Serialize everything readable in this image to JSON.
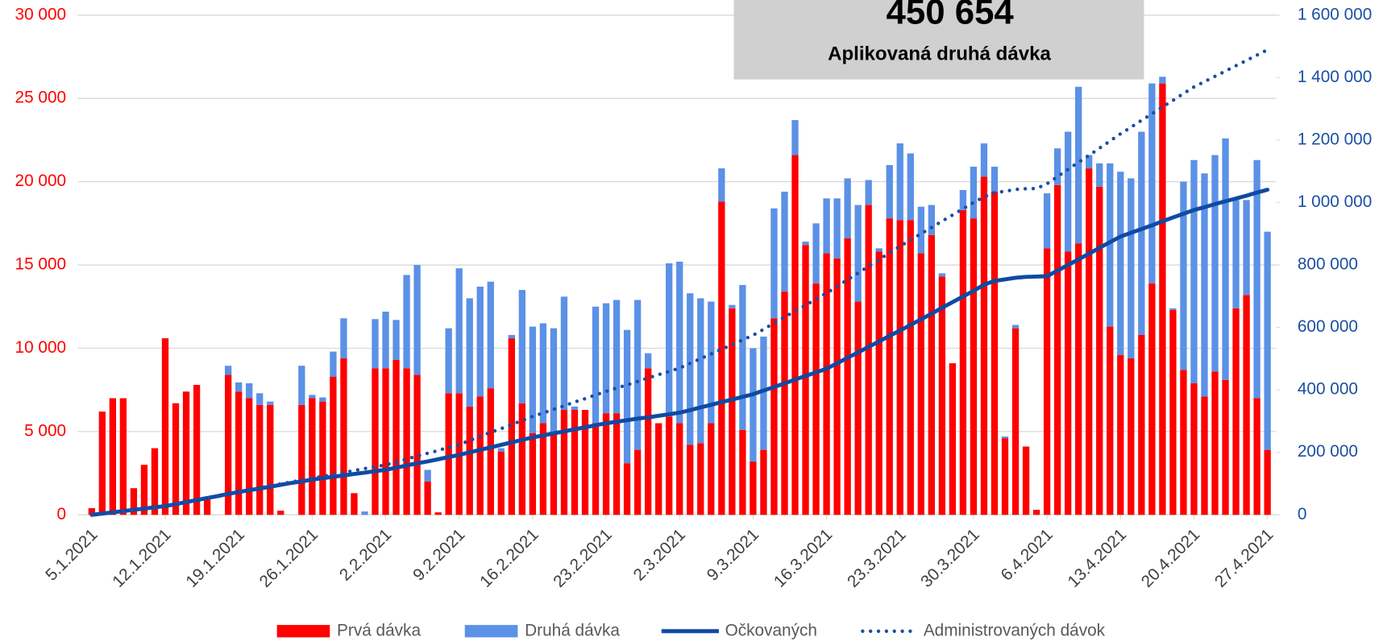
{
  "chart_data": {
    "type": "bar",
    "stacked": true,
    "annotation": {
      "value": "450 654",
      "label": "Aplikovaná druhá dávka"
    },
    "categories": [
      "5.1.2021",
      null,
      null,
      null,
      null,
      null,
      null,
      "12.1.2021",
      null,
      null,
      null,
      null,
      null,
      null,
      "19.1.2021",
      null,
      null,
      null,
      null,
      null,
      null,
      "26.1.2021",
      null,
      null,
      null,
      null,
      null,
      null,
      "2.2.2021",
      null,
      null,
      null,
      null,
      null,
      null,
      "9.2.2021",
      null,
      null,
      null,
      null,
      null,
      null,
      "16.2.2021",
      null,
      null,
      null,
      null,
      null,
      null,
      "23.2.2021",
      null,
      null,
      null,
      null,
      null,
      null,
      "2.3.2021",
      null,
      null,
      null,
      null,
      null,
      null,
      "9.3.2021",
      null,
      null,
      null,
      null,
      null,
      null,
      "16.3.2021",
      null,
      null,
      null,
      null,
      null,
      null,
      "23.3.2021",
      null,
      null,
      null,
      null,
      null,
      null,
      "30.3.2021",
      null,
      null,
      null,
      null,
      null,
      null,
      "6.4.2021",
      null,
      null,
      null,
      null,
      null,
      null,
      "13.4.2021",
      null,
      null,
      null,
      null,
      null,
      null,
      "20.4.2021",
      null,
      null,
      null,
      null,
      null,
      null,
      "27.4.2021"
    ],
    "series": [
      {
        "name": "Prvá dávka",
        "color": "#ff0000",
        "kind": "bar",
        "values": [
          400,
          6200,
          7000,
          7000,
          1600,
          3000,
          4000,
          10600,
          6700,
          7400,
          7800,
          1000,
          0,
          8400,
          7400,
          7000,
          6600,
          6600,
          250,
          0,
          6600,
          7000,
          6800,
          8300,
          9400,
          1300,
          0,
          8800,
          8800,
          9300,
          8800,
          8400,
          2000,
          150,
          7300,
          7300,
          6500,
          7100,
          7600,
          3800,
          10600,
          6700,
          4900,
          5500,
          4800,
          6300,
          6300,
          6300,
          5500,
          6100,
          6100,
          3100,
          3900,
          8800,
          5500,
          5900,
          5500,
          4200,
          4300,
          5500,
          18800,
          12400,
          5100,
          3200,
          3900,
          11800,
          13400,
          21600,
          16200,
          13900,
          15700,
          15400,
          16600,
          12800,
          18600,
          15800,
          17800,
          17700,
          17700,
          15700,
          16800,
          14300,
          9100,
          18300,
          17800,
          20300,
          19400,
          4600,
          11200,
          4100,
          300,
          16000,
          19800,
          15800,
          16300,
          20800,
          19700,
          11300,
          9600,
          9400,
          10800,
          13900,
          25900,
          12300,
          8700,
          7900,
          7100,
          8600,
          8100,
          12400,
          13200,
          7000,
          3900
        ]
      },
      {
        "name": "Druhá dávka",
        "color": "#5b91e6",
        "kind": "bar",
        "values": [
          0,
          0,
          0,
          0,
          0,
          0,
          0,
          0,
          0,
          0,
          0,
          0,
          0,
          550,
          550,
          900,
          700,
          200,
          0,
          0,
          2350,
          200,
          250,
          1500,
          2400,
          0,
          200,
          2950,
          3400,
          2400,
          5600,
          6600,
          700,
          0,
          3900,
          7500,
          6500,
          6600,
          6400,
          200,
          200,
          6800,
          6400,
          6000,
          6400,
          6800,
          200,
          0,
          7000,
          6600,
          6800,
          8000,
          9000,
          900,
          0,
          9200,
          9700,
          9100,
          8700,
          7300,
          2000,
          200,
          8700,
          6800,
          6800,
          6600,
          6000,
          2100,
          200,
          3600,
          3300,
          3600,
          3600,
          5800,
          1500,
          200,
          3200,
          4600,
          4000,
          2800,
          1800,
          200,
          0,
          1200,
          3100,
          2000,
          1500,
          100,
          200,
          0,
          0,
          3300,
          2200,
          7200,
          9400,
          800,
          1400,
          9800,
          11000,
          10800,
          12200,
          12000,
          400,
          100,
          11300,
          13400,
          13400,
          13000,
          14500,
          6500,
          5700,
          14300,
          13100
        ]
      },
      {
        "name": "Očkovaných",
        "color": "#0f4aa3",
        "kind": "line",
        "axis": "y2",
        "values": [
          0,
          4000,
          8000,
          12000,
          16000,
          20000,
          24000,
          28000,
          34000,
          41000,
          47000,
          54000,
          60000,
          67000,
          73000,
          79000,
          84000,
          90000,
          96000,
          102000,
          107000,
          113000,
          117000,
          122000,
          126000,
          131000,
          135000,
          140000,
          144000,
          151000,
          158000,
          165000,
          171000,
          178000,
          185000,
          192000,
          200000,
          208000,
          216000,
          224000,
          232000,
          240000,
          248000,
          254000,
          261000,
          267000,
          274000,
          280000,
          287000,
          293000,
          298000,
          303000,
          308000,
          312000,
          317000,
          322000,
          327000,
          335000,
          344000,
          352000,
          361000,
          369000,
          378000,
          386000,
          398000,
          409000,
          421000,
          433000,
          445000,
          456000,
          468000,
          485000,
          503000,
          520000,
          538000,
          555000,
          573000,
          590000,
          608000,
          626000,
          644000,
          663000,
          681000,
          699000,
          717000,
          737000,
          749000,
          754000,
          759000,
          762000,
          763000,
          764000,
          782000,
          800000,
          818000,
          836000,
          855000,
          873000,
          891000,
          903000,
          915000,
          927000,
          940000,
          952000,
          964000,
          976000,
          985000,
          995000,
          1004000,
          1013000,
          1022000,
          1032000,
          1041000
        ]
      },
      {
        "name": "Administrovaných dávok",
        "color": "#1a4fa3",
        "kind": "dotted",
        "axis": "y2",
        "values": [
          0,
          4000,
          8000,
          12000,
          16000,
          20000,
          24000,
          28000,
          35000,
          41000,
          48000,
          54000,
          61000,
          67000,
          74000,
          80000,
          86000,
          92000,
          99000,
          105000,
          111000,
          117000,
          123000,
          129000,
          135000,
          142000,
          148000,
          154000,
          160000,
          169000,
          179000,
          188000,
          197000,
          206000,
          216000,
          225000,
          238000,
          251000,
          264000,
          276000,
          289000,
          302000,
          315000,
          326000,
          338000,
          349000,
          361000,
          372000,
          384000,
          395000,
          406000,
          416000,
          427000,
          438000,
          449000,
          459000,
          470000,
          485000,
          500000,
          515000,
          530000,
          545000,
          560000,
          575000,
          594000,
          614000,
          633000,
          652000,
          671000,
          691000,
          710000,
          731000,
          753000,
          774000,
          796000,
          817000,
          839000,
          860000,
          880000,
          900000,
          920000,
          940000,
          960000,
          980000,
          1000000,
          1018000,
          1032000,
          1036000,
          1042000,
          1044000,
          1045000,
          1060000,
          1083000,
          1106000,
          1129000,
          1151000,
          1174000,
          1197000,
          1220000,
          1241000,
          1263000,
          1284000,
          1306000,
          1327000,
          1349000,
          1370000,
          1387000,
          1404000,
          1421000,
          1438000,
          1455000,
          1472000,
          1489000
        ]
      }
    ],
    "ylim": [
      0,
      30000
    ],
    "yticks": [
      0,
      {
        "value": 5000,
        "label": "5 000"
      },
      {
        "value": 10000,
        "label": "10 000"
      },
      {
        "value": 15000,
        "label": "15 000"
      },
      {
        "value": 20000,
        "label": "20 000"
      },
      {
        "value": 25000,
        "label": "25 000"
      },
      {
        "value": 30000,
        "label": "30 000"
      }
    ],
    "y2lim": [
      0,
      1600000
    ],
    "y2ticks": [
      0,
      {
        "value": 200000,
        "label": "200 000"
      },
      {
        "value": 400000,
        "label": "400 000"
      },
      {
        "value": 600000,
        "label": "600 000"
      },
      {
        "value": 800000,
        "label": "800 000"
      },
      {
        "value": 1000000,
        "label": "1 000 000"
      },
      {
        "value": 1200000,
        "label": "1 200 000"
      },
      {
        "value": 1400000,
        "label": "1 400 000"
      },
      {
        "value": 1600000,
        "label": "1 600 000"
      }
    ],
    "grid": true,
    "legend": "bottom",
    "ytick_color": "#ff0000",
    "y2tick_color": "#1a4fa3"
  }
}
